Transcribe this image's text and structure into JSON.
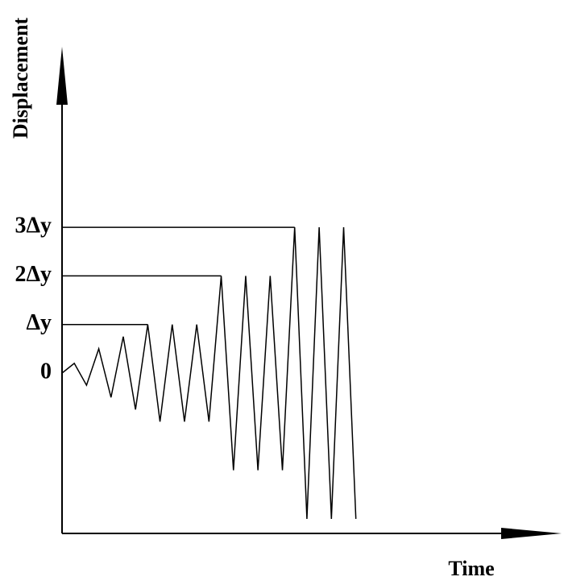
{
  "chart_data": {
    "type": "line",
    "x_label": "Time",
    "y_label": "Displacement",
    "x": [
      0,
      1,
      2,
      3,
      4,
      5,
      6,
      7,
      8,
      9,
      10,
      11,
      12,
      13,
      14,
      15,
      16,
      17,
      18,
      19,
      20,
      21,
      22,
      23,
      24
    ],
    "values": [
      0,
      0.2,
      -0.25,
      0.5,
      -0.5,
      0.75,
      -0.75,
      1,
      -1,
      1,
      -1,
      1,
      -1,
      2,
      -2,
      2,
      -2,
      2,
      -2,
      3,
      -3,
      3,
      -3,
      3,
      -3
    ],
    "color": "#000000",
    "xlim": [
      0,
      40.8
    ],
    "ylim": [
      -3.3,
      6.6
    ],
    "yticks": [
      {
        "value": 0,
        "label": "0"
      },
      {
        "value": 1,
        "label": "Δy"
      },
      {
        "value": 2,
        "label": "2Δy"
      },
      {
        "value": 3,
        "label": "3Δy"
      }
    ]
  }
}
